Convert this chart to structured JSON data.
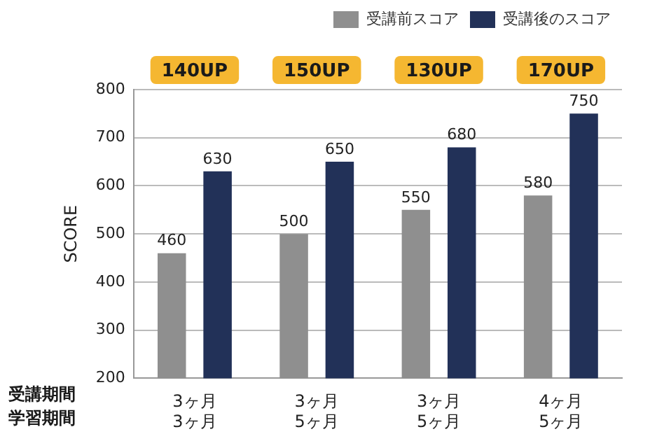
{
  "chart_data": {
    "type": "bar",
    "ylabel": "SCORE",
    "categories": [
      "3ヶ月\n3ヶ月",
      "3ヶ月\n5ヶ月",
      "3ヶ月\n5ヶ月",
      "4ヶ月\n5ヶ月"
    ],
    "series": [
      {
        "name": "受講前スコア",
        "color": "#8f8f8f",
        "values": [
          460,
          500,
          550,
          580
        ]
      },
      {
        "name": "受講後のスコア",
        "color": "#223158",
        "values": [
          630,
          650,
          680,
          750
        ]
      }
    ],
    "ylim": [
      200,
      800
    ],
    "yticks": [
      200,
      300,
      400,
      500,
      600,
      700,
      800
    ],
    "grid": "y",
    "legend": "top right",
    "data_labels": true,
    "annotations": [
      "140UP",
      "150UP",
      "130UP",
      "170UP",
      "受講期間",
      "学習期間"
    ]
  }
}
